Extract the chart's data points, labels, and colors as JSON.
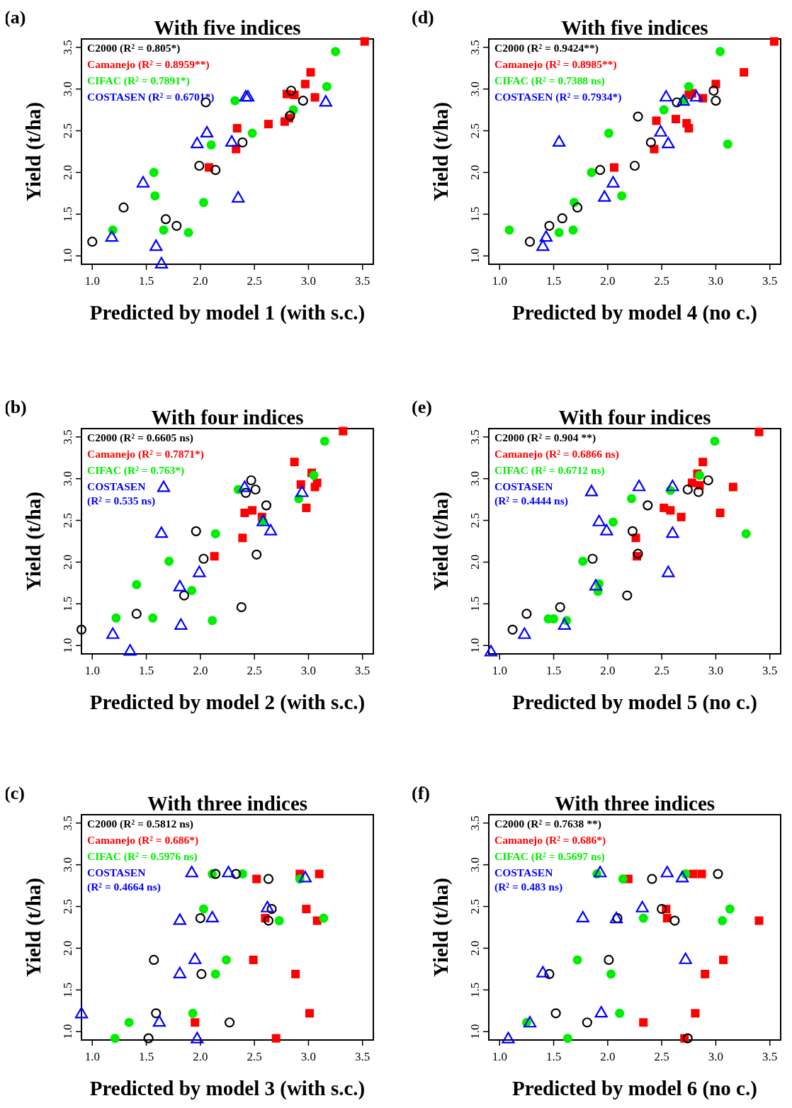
{
  "chart_data": [
    {
      "type": "scatter",
      "title": "With five indices",
      "xlabel": "Predicted by model 1 (with s.c.)",
      "ylabel": "Yield (t/ha)",
      "annotations": [
        "(a)"
      ],
      "legend": "top left",
      "xlim": [
        0.9,
        3.6
      ],
      "ylim": [
        0.9,
        3.6
      ],
      "xticks": [
        {
          "value": 1,
          "label": "1.0"
        },
        1.5,
        {
          "value": 2,
          "label": "2.0"
        },
        2.5,
        {
          "value": 3,
          "label": "3.0"
        },
        3.5
      ],
      "yticks": [
        {
          "value": 1,
          "label": "1.0"
        },
        1.5,
        {
          "value": 2,
          "label": "2.0"
        },
        2.5,
        {
          "value": 3,
          "label": "3.0"
        },
        3.5
      ],
      "series": [
        {
          "name": "C2000 (R² = 0.805*)",
          "color": "#000000",
          "marker": "circle",
          "x": [
            1.0,
            1.29,
            1.68,
            1.78,
            1.99,
            2.14,
            2.39,
            2.05,
            2.84,
            2.95,
            2.83
          ],
          "values": [
            1.17,
            1.58,
            1.44,
            1.36,
            2.08,
            2.03,
            2.36,
            2.84,
            2.98,
            2.86,
            2.68
          ]
        },
        {
          "name": "Camanejo (R² = 0.8959**)",
          "color": "#ff0000",
          "marker": "square",
          "x": [
            3.52,
            3.02,
            2.97,
            2.8,
            2.87,
            3.06,
            2.82,
            2.78,
            2.63,
            2.34,
            2.33,
            2.08
          ],
          "values": [
            3.57,
            3.2,
            3.06,
            2.94,
            2.93,
            2.9,
            2.65,
            2.61,
            2.58,
            2.53,
            2.28,
            2.06
          ]
        },
        {
          "name": "CIFAC (R² = 0.7891*)",
          "color": "#00ee00",
          "marker": "circle",
          "x": [
            3.25,
            3.17,
            2.32,
            2.86,
            2.48,
            2.1,
            1.57,
            1.58,
            2.03,
            1.19,
            1.66,
            1.89
          ],
          "values": [
            3.45,
            3.03,
            2.86,
            2.75,
            2.47,
            2.33,
            2.0,
            1.72,
            1.64,
            1.31,
            1.31,
            1.28
          ]
        },
        {
          "name": "COSTASEN (R² = 0.6701*)",
          "color": "#0000ff",
          "marker": "triangle",
          "x": [
            2.42,
            2.44,
            3.16,
            2.06,
            1.97,
            2.29,
            1.47,
            2.35,
            1.18,
            1.59,
            1.64
          ],
          "values": [
            2.91,
            2.91,
            2.85,
            2.48,
            2.35,
            2.37,
            1.88,
            1.7,
            1.23,
            1.12,
            0.91
          ]
        }
      ]
    },
    {
      "type": "scatter",
      "title": "With five indices",
      "xlabel": "Predicted by model 4 (no c.)",
      "ylabel": "Yield (t/ha)",
      "annotations": [
        "(d)"
      ],
      "legend": "top left",
      "xlim": [
        0.9,
        3.6
      ],
      "ylim": [
        0.9,
        3.6
      ],
      "xticks": [
        {
          "value": 1,
          "label": "1.0"
        },
        1.5,
        {
          "value": 2,
          "label": "2.0"
        },
        2.5,
        {
          "value": 3,
          "label": "3.0"
        },
        3.5
      ],
      "yticks": [
        {
          "value": 1,
          "label": "1.0"
        },
        1.5,
        {
          "value": 2,
          "label": "2.0"
        },
        2.5,
        {
          "value": 3,
          "label": "3.0"
        },
        3.5
      ],
      "series": [
        {
          "name": "C2000 (R² = 0.9424**)",
          "color": "#000000",
          "marker": "circle",
          "x": [
            1.28,
            1.46,
            1.58,
            1.72,
            1.93,
            2.25,
            2.4,
            2.28,
            2.64,
            2.98,
            3.0
          ],
          "values": [
            1.17,
            1.36,
            1.45,
            1.58,
            2.03,
            2.08,
            2.36,
            2.67,
            2.84,
            2.98,
            2.86
          ]
        },
        {
          "name": "Camanejo (R² = 0.8985**)",
          "color": "#ff0000",
          "marker": "square",
          "x": [
            3.54,
            3.26,
            3.0,
            2.75,
            2.78,
            2.88,
            2.45,
            2.63,
            2.73,
            2.75,
            2.43,
            2.06
          ],
          "values": [
            3.57,
            3.2,
            3.06,
            2.93,
            2.95,
            2.89,
            2.62,
            2.64,
            2.59,
            2.53,
            2.28,
            2.06
          ]
        },
        {
          "name": "CIFAC (R² = 0.7388 ns)",
          "color": "#00ee00",
          "marker": "circle",
          "x": [
            3.04,
            2.75,
            2.7,
            2.52,
            2.01,
            3.11,
            1.85,
            2.13,
            1.69,
            1.09,
            1.55,
            1.68
          ],
          "values": [
            3.45,
            3.03,
            2.86,
            2.75,
            2.47,
            2.34,
            2.0,
            1.72,
            1.64,
            1.31,
            1.28,
            1.31
          ]
        },
        {
          "name": "COSTASEN (R² = 0.7934*)",
          "color": "#0000ff",
          "marker": "triangle",
          "x": [
            2.54,
            2.7,
            2.82,
            2.49,
            1.55,
            2.56,
            2.05,
            1.97,
            1.43,
            1.4
          ],
          "values": [
            2.91,
            2.86,
            2.91,
            2.49,
            2.37,
            2.35,
            1.88,
            1.71,
            1.23,
            1.12
          ]
        }
      ]
    },
    {
      "type": "scatter",
      "title": "With four indices",
      "xlabel": "Predicted by model 2 (with s.c.)",
      "ylabel": "Yield (t/ha)",
      "annotations": [
        "(b)"
      ],
      "legend": "top left",
      "xlim": [
        0.9,
        3.6
      ],
      "ylim": [
        0.9,
        3.6
      ],
      "xticks": [
        {
          "value": 1,
          "label": "1.0"
        },
        1.5,
        {
          "value": 2,
          "label": "2.0"
        },
        2.5,
        {
          "value": 3,
          "label": "3.0"
        },
        3.5
      ],
      "yticks": [
        {
          "value": 1,
          "label": "1.0"
        },
        1.5,
        {
          "value": 2,
          "label": "2.0"
        },
        2.5,
        {
          "value": 3,
          "label": "3.0"
        },
        3.5
      ],
      "series": [
        {
          "name": "C2000 (R² = 0.6605 ns)",
          "color": "#000000",
          "marker": "circle",
          "x": [
            2.47,
            2.42,
            2.51,
            2.61,
            1.96,
            2.03,
            2.52,
            1.85,
            1.41,
            2.38,
            0.9
          ],
          "values": [
            2.98,
            2.83,
            2.87,
            2.68,
            2.37,
            2.04,
            2.09,
            1.6,
            1.38,
            1.46,
            1.19
          ]
        },
        {
          "name": "Camanejo (R² = 0.7871*)",
          "color": "#ff0000",
          "marker": "square",
          "x": [
            3.32,
            2.87,
            3.03,
            2.93,
            3.08,
            3.06,
            2.98,
            2.41,
            2.48,
            2.57,
            2.39,
            2.13
          ],
          "values": [
            3.57,
            3.2,
            3.07,
            2.93,
            2.95,
            2.9,
            2.65,
            2.59,
            2.62,
            2.54,
            2.29,
            2.07
          ]
        },
        {
          "name": "CIFAC (R² = 0.763*)",
          "color": "#00ee00",
          "marker": "circle",
          "x": [
            3.15,
            3.05,
            2.35,
            2.91,
            2.58,
            2.14,
            1.71,
            1.41,
            1.92,
            1.22,
            1.56,
            2.11
          ],
          "values": [
            3.45,
            3.04,
            2.87,
            2.76,
            2.49,
            2.34,
            2.01,
            1.73,
            1.66,
            1.33,
            1.33,
            1.3
          ]
        },
        {
          "name": "COSTASEN\n(R² = 0.535 ns)",
          "color": "#0000ff",
          "marker": "triangle",
          "x": [
            1.66,
            2.41,
            2.94,
            2.58,
            2.65,
            1.64,
            1.99,
            1.81,
            1.82,
            1.19,
            1.35
          ],
          "values": [
            2.9,
            2.9,
            2.84,
            2.49,
            2.38,
            2.35,
            1.88,
            1.71,
            1.25,
            1.14,
            0.94
          ]
        }
      ]
    },
    {
      "type": "scatter",
      "title": "With four indices",
      "xlabel": "Predicted by model 5 (no c.)",
      "ylabel": "Yield (t/ha)",
      "annotations": [
        "(e)"
      ],
      "legend": "top left",
      "xlim": [
        0.9,
        3.6
      ],
      "ylim": [
        0.9,
        3.6
      ],
      "xticks": [
        {
          "value": 1,
          "label": "1.0"
        },
        1.5,
        {
          "value": 2,
          "label": "2.0"
        },
        2.5,
        {
          "value": 3,
          "label": "3.0"
        },
        3.5
      ],
      "yticks": [
        {
          "value": 1,
          "label": "1.0"
        },
        1.5,
        {
          "value": 2,
          "label": "2.0"
        },
        2.5,
        {
          "value": 3,
          "label": "3.0"
        },
        3.5
      ],
      "series": [
        {
          "name": "C2000 (R² = 0.904 **)",
          "color": "#000000",
          "marker": "circle",
          "x": [
            1.12,
            1.25,
            1.56,
            1.86,
            2.18,
            2.23,
            2.28,
            2.37,
            2.74,
            2.84,
            2.93
          ],
          "values": [
            1.19,
            1.38,
            1.46,
            2.04,
            1.6,
            2.37,
            2.1,
            2.68,
            2.87,
            2.84,
            2.98
          ]
        },
        {
          "name": "Camanejo (R² = 0.6866 ns)",
          "color": "#ff0000",
          "marker": "square",
          "x": [
            3.4,
            2.88,
            2.83,
            2.78,
            2.85,
            3.16,
            2.52,
            2.58,
            2.68,
            3.04,
            2.26,
            2.27
          ],
          "values": [
            3.56,
            3.2,
            3.06,
            2.95,
            2.92,
            2.9,
            2.65,
            2.62,
            2.54,
            2.59,
            2.29,
            2.07
          ]
        },
        {
          "name": "CIFAC (R² = 0.6712 ns)",
          "color": "#00ee00",
          "marker": "circle",
          "x": [
            2.99,
            2.85,
            2.58,
            2.22,
            2.05,
            3.28,
            1.77,
            1.92,
            1.91,
            1.45,
            1.5,
            1.62
          ],
          "values": [
            3.45,
            3.04,
            2.86,
            2.76,
            2.48,
            2.34,
            2.01,
            1.74,
            1.65,
            1.32,
            1.32,
            1.3
          ]
        },
        {
          "name": "COSTASEN\n(R² = 0.4444 ns)",
          "color": "#0000ff",
          "marker": "triangle",
          "x": [
            1.85,
            2.29,
            2.6,
            1.92,
            1.99,
            2.6,
            2.56,
            1.89,
            1.6,
            1.23,
            0.92
          ],
          "values": [
            2.85,
            2.91,
            2.91,
            2.49,
            2.38,
            2.35,
            1.88,
            1.72,
            1.25,
            1.14,
            0.93
          ]
        }
      ]
    },
    {
      "type": "scatter",
      "title": "With three indices",
      "xlabel": "Predicted by model 3 (with s.c.)",
      "ylabel": "Yield (t/ha)",
      "annotations": [
        "(c)"
      ],
      "legend": "top left",
      "xlim": [
        0.9,
        3.6
      ],
      "ylim": [
        0.9,
        3.6
      ],
      "xticks": [
        {
          "value": 1,
          "label": "1.0"
        },
        1.5,
        {
          "value": 2,
          "label": "2.0"
        },
        2.5,
        {
          "value": 3,
          "label": "3.0"
        },
        3.5
      ],
      "yticks": [
        {
          "value": 1,
          "label": "1.0"
        },
        1.5,
        {
          "value": 2,
          "label": "2.0"
        },
        2.5,
        {
          "value": 3,
          "label": "3.0"
        },
        3.5
      ],
      "series": [
        {
          "name": "C2000 (R² = 0.5812 ns)",
          "color": "#000000",
          "marker": "circle",
          "x": [
            2.14,
            2.33,
            2.63,
            2.66,
            2.63,
            2.0,
            1.57,
            2.01,
            1.59,
            2.27,
            1.52
          ],
          "values": [
            2.89,
            2.89,
            2.83,
            2.47,
            2.33,
            2.36,
            1.86,
            1.69,
            1.22,
            1.11,
            0.92
          ]
        },
        {
          "name": "Camanejo (R² = 0.686*)",
          "color": "#ff0000",
          "marker": "square",
          "x": [
            2.52,
            2.92,
            3.1,
            2.98,
            2.6,
            3.08,
            2.49,
            2.88,
            3.01,
            1.95,
            2.7
          ],
          "values": [
            2.83,
            2.89,
            2.89,
            2.47,
            2.36,
            2.33,
            1.86,
            1.69,
            1.22,
            1.11,
            0.92
          ]
        },
        {
          "name": "CIFAC (R² = 0.5976 ns)",
          "color": "#00ee00",
          "marker": "circle",
          "x": [
            2.11,
            2.39,
            2.92,
            2.03,
            2.73,
            3.14,
            2.24,
            2.14,
            1.93,
            1.34,
            1.21
          ],
          "values": [
            2.89,
            2.89,
            2.83,
            2.47,
            2.33,
            2.36,
            1.86,
            1.69,
            1.22,
            1.11,
            0.92
          ]
        },
        {
          "name": "COSTASEN\n(R² = 0.4664 ns)",
          "color": "#0000ff",
          "marker": "triangle",
          "x": [
            1.92,
            2.26,
            2.97,
            2.62,
            2.11,
            1.81,
            1.95,
            1.81,
            0.9,
            1.62,
            1.97
          ],
          "values": [
            2.91,
            2.91,
            2.85,
            2.49,
            2.37,
            2.34,
            1.87,
            1.7,
            1.22,
            1.12,
            0.92
          ]
        }
      ]
    },
    {
      "type": "scatter",
      "title": "With three indices",
      "xlabel": "Predicted by model 6 (no c.)",
      "ylabel": "Yield (t/ha)",
      "annotations": [
        "(f)"
      ],
      "legend": "top left",
      "xlim": [
        0.9,
        3.6
      ],
      "ylim": [
        0.9,
        3.6
      ],
      "xticks": [
        {
          "value": 1,
          "label": "1.0"
        },
        1.5,
        {
          "value": 2,
          "label": "2.0"
        },
        2.5,
        {
          "value": 3,
          "label": "3.0"
        },
        3.5
      ],
      "yticks": [
        {
          "value": 1,
          "label": "1.0"
        },
        1.5,
        {
          "value": 2,
          "label": "2.0"
        },
        2.5,
        {
          "value": 3,
          "label": "3.0"
        },
        3.5
      ],
      "series": [
        {
          "name": "C2000 (R² = 0.7638 **)",
          "color": "#000000",
          "marker": "circle",
          "x": [
            2.41,
            3.02,
            2.5,
            2.09,
            2.62,
            2.01,
            1.46,
            1.52,
            1.81,
            2.74
          ],
          "values": [
            2.83,
            2.89,
            2.47,
            2.36,
            2.33,
            1.86,
            1.69,
            1.22,
            1.11,
            0.92
          ]
        },
        {
          "name": "Camanejo (R² = 0.686*)",
          "color": "#ff0000",
          "marker": "square",
          "x": [
            2.19,
            2.79,
            2.87,
            2.54,
            2.55,
            3.4,
            3.07,
            2.9,
            2.81,
            2.33,
            2.71
          ],
          "values": [
            2.83,
            2.89,
            2.89,
            2.47,
            2.36,
            2.33,
            1.86,
            1.69,
            1.22,
            1.11,
            0.92
          ]
        },
        {
          "name": "CIFAC (R² = 0.5697 ns)",
          "color": "#00ee00",
          "marker": "circle",
          "x": [
            1.9,
            2.14,
            2.72,
            3.13,
            2.33,
            3.06,
            1.72,
            2.03,
            2.11,
            1.25,
            1.63
          ],
          "values": [
            2.89,
            2.83,
            2.89,
            2.47,
            2.36,
            2.33,
            1.86,
            1.69,
            1.22,
            1.11,
            0.92
          ]
        },
        {
          "name": "COSTASEN\n(R² = 0.483 ns)",
          "color": "#0000ff",
          "marker": "triangle",
          "x": [
            1.93,
            2.55,
            2.69,
            2.32,
            1.77,
            2.08,
            2.72,
            1.4,
            1.94,
            1.28,
            1.08
          ],
          "values": [
            2.91,
            2.91,
            2.85,
            2.49,
            2.37,
            2.36,
            1.87,
            1.71,
            1.23,
            1.11,
            0.92
          ]
        }
      ]
    }
  ]
}
